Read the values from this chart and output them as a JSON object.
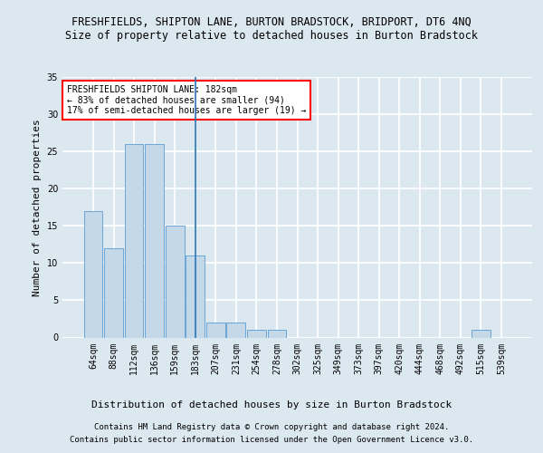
{
  "title1": "FRESHFIELDS, SHIPTON LANE, BURTON BRADSTOCK, BRIDPORT, DT6 4NQ",
  "title2": "Size of property relative to detached houses in Burton Bradstock",
  "xlabel": "Distribution of detached houses by size in Burton Bradstock",
  "ylabel": "Number of detached properties",
  "footer1": "Contains HM Land Registry data © Crown copyright and database right 2024.",
  "footer2": "Contains public sector information licensed under the Open Government Licence v3.0.",
  "categories": [
    "64sqm",
    "88sqm",
    "112sqm",
    "136sqm",
    "159sqm",
    "183sqm",
    "207sqm",
    "231sqm",
    "254sqm",
    "278sqm",
    "302sqm",
    "325sqm",
    "349sqm",
    "373sqm",
    "397sqm",
    "420sqm",
    "444sqm",
    "468sqm",
    "492sqm",
    "515sqm",
    "539sqm"
  ],
  "values": [
    17,
    12,
    26,
    26,
    15,
    11,
    2,
    2,
    1,
    1,
    0,
    0,
    0,
    0,
    0,
    0,
    0,
    0,
    0,
    1,
    0
  ],
  "bar_color": "#c5d8e8",
  "bar_edge_color": "#5b9bd5",
  "vline_index": 5,
  "vline_color": "#2e75b6",
  "annotation_text": "FRESHFIELDS SHIPTON LANE: 182sqm\n← 83% of detached houses are smaller (94)\n17% of semi-detached houses are larger (19) →",
  "annotation_box_color": "white",
  "annotation_box_edge": "red",
  "ylim": [
    0,
    35
  ],
  "yticks": [
    0,
    5,
    10,
    15,
    20,
    25,
    30,
    35
  ],
  "bg_color": "#dce8f0",
  "plot_bg_color": "#dce8f0",
  "grid_color": "white",
  "title_fontsize": 8.5,
  "subtitle_fontsize": 8.5,
  "axis_label_fontsize": 8,
  "tick_fontsize": 7,
  "footer_fontsize": 6.5
}
